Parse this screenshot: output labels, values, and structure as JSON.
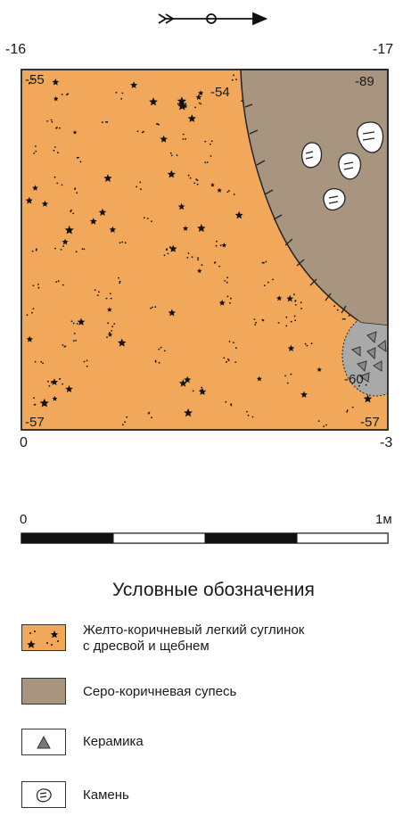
{
  "north_arrow": {
    "icon": "north-arrow-icon"
  },
  "corners": {
    "top_left": "-16",
    "top_right": "-17",
    "bottom_left": "0",
    "bottom_right": "-3"
  },
  "depths": {
    "nw": "-55",
    "n_mid": "-54",
    "ne": "-89",
    "sw": "-57",
    "se": "-57",
    "pit": "-60"
  },
  "scale_bar": {
    "start_label": "0",
    "end_label": "1м",
    "segments": 4
  },
  "legend": {
    "title": "Условные обозначения",
    "items": [
      {
        "icon": "loam-with-gravel-swatch",
        "label_line1": "Желто-коричневый легкий суглинок",
        "label_line2": "с дресвой и щебнем"
      },
      {
        "icon": "sandy-loam-swatch",
        "label_line1": "Серо-коричневая супесь",
        "label_line2": ""
      },
      {
        "icon": "ceramics-triangle-icon",
        "label_line1": "Керамика",
        "label_line2": ""
      },
      {
        "icon": "stone-icon",
        "label_line1": "Камень",
        "label_line2": ""
      }
    ]
  },
  "colors": {
    "loam": "#F2A85A",
    "sandy_loam": "#A89580",
    "outline": "#222222"
  }
}
